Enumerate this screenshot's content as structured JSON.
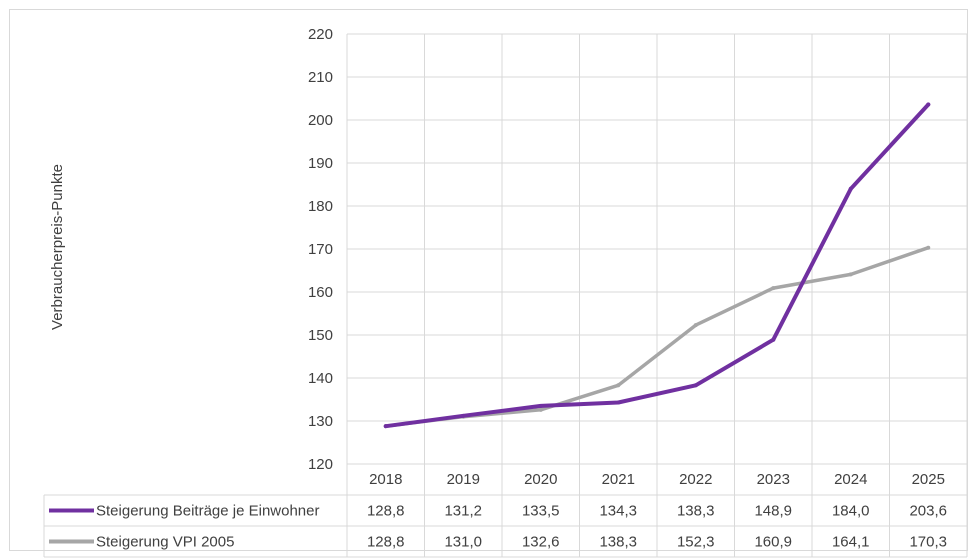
{
  "chart_data": {
    "type": "line",
    "title": "",
    "xlabel": "",
    "ylabel": "Verbraucherpreis-Punkte",
    "ylim": [
      120,
      220
    ],
    "yticks": [
      120,
      130,
      140,
      150,
      160,
      170,
      180,
      190,
      200,
      210,
      220
    ],
    "grid": true,
    "legend": "data-table",
    "categories": [
      "2018",
      "2019",
      "2020",
      "2021",
      "2022",
      "2023",
      "2024",
      "2025"
    ],
    "series": [
      {
        "name": "Steigerung Beiträge je Einwohner",
        "color": "#7030a0",
        "values": [
          128.8,
          131.2,
          133.5,
          134.3,
          138.3,
          148.9,
          184.0,
          203.6
        ],
        "labels": [
          "128,8",
          "131,2",
          "133,5",
          "134,3",
          "138,3",
          "148,9",
          "184,0",
          "203,6"
        ]
      },
      {
        "name": "Steigerung VPI 2005",
        "color": "#a6a6a6",
        "values": [
          128.8,
          131.0,
          132.6,
          138.3,
          152.3,
          160.9,
          164.1,
          170.3
        ],
        "labels": [
          "128,8",
          "131,0",
          "132,6",
          "138,3",
          "152,3",
          "160,9",
          "164,1",
          "170,3"
        ]
      }
    ]
  }
}
